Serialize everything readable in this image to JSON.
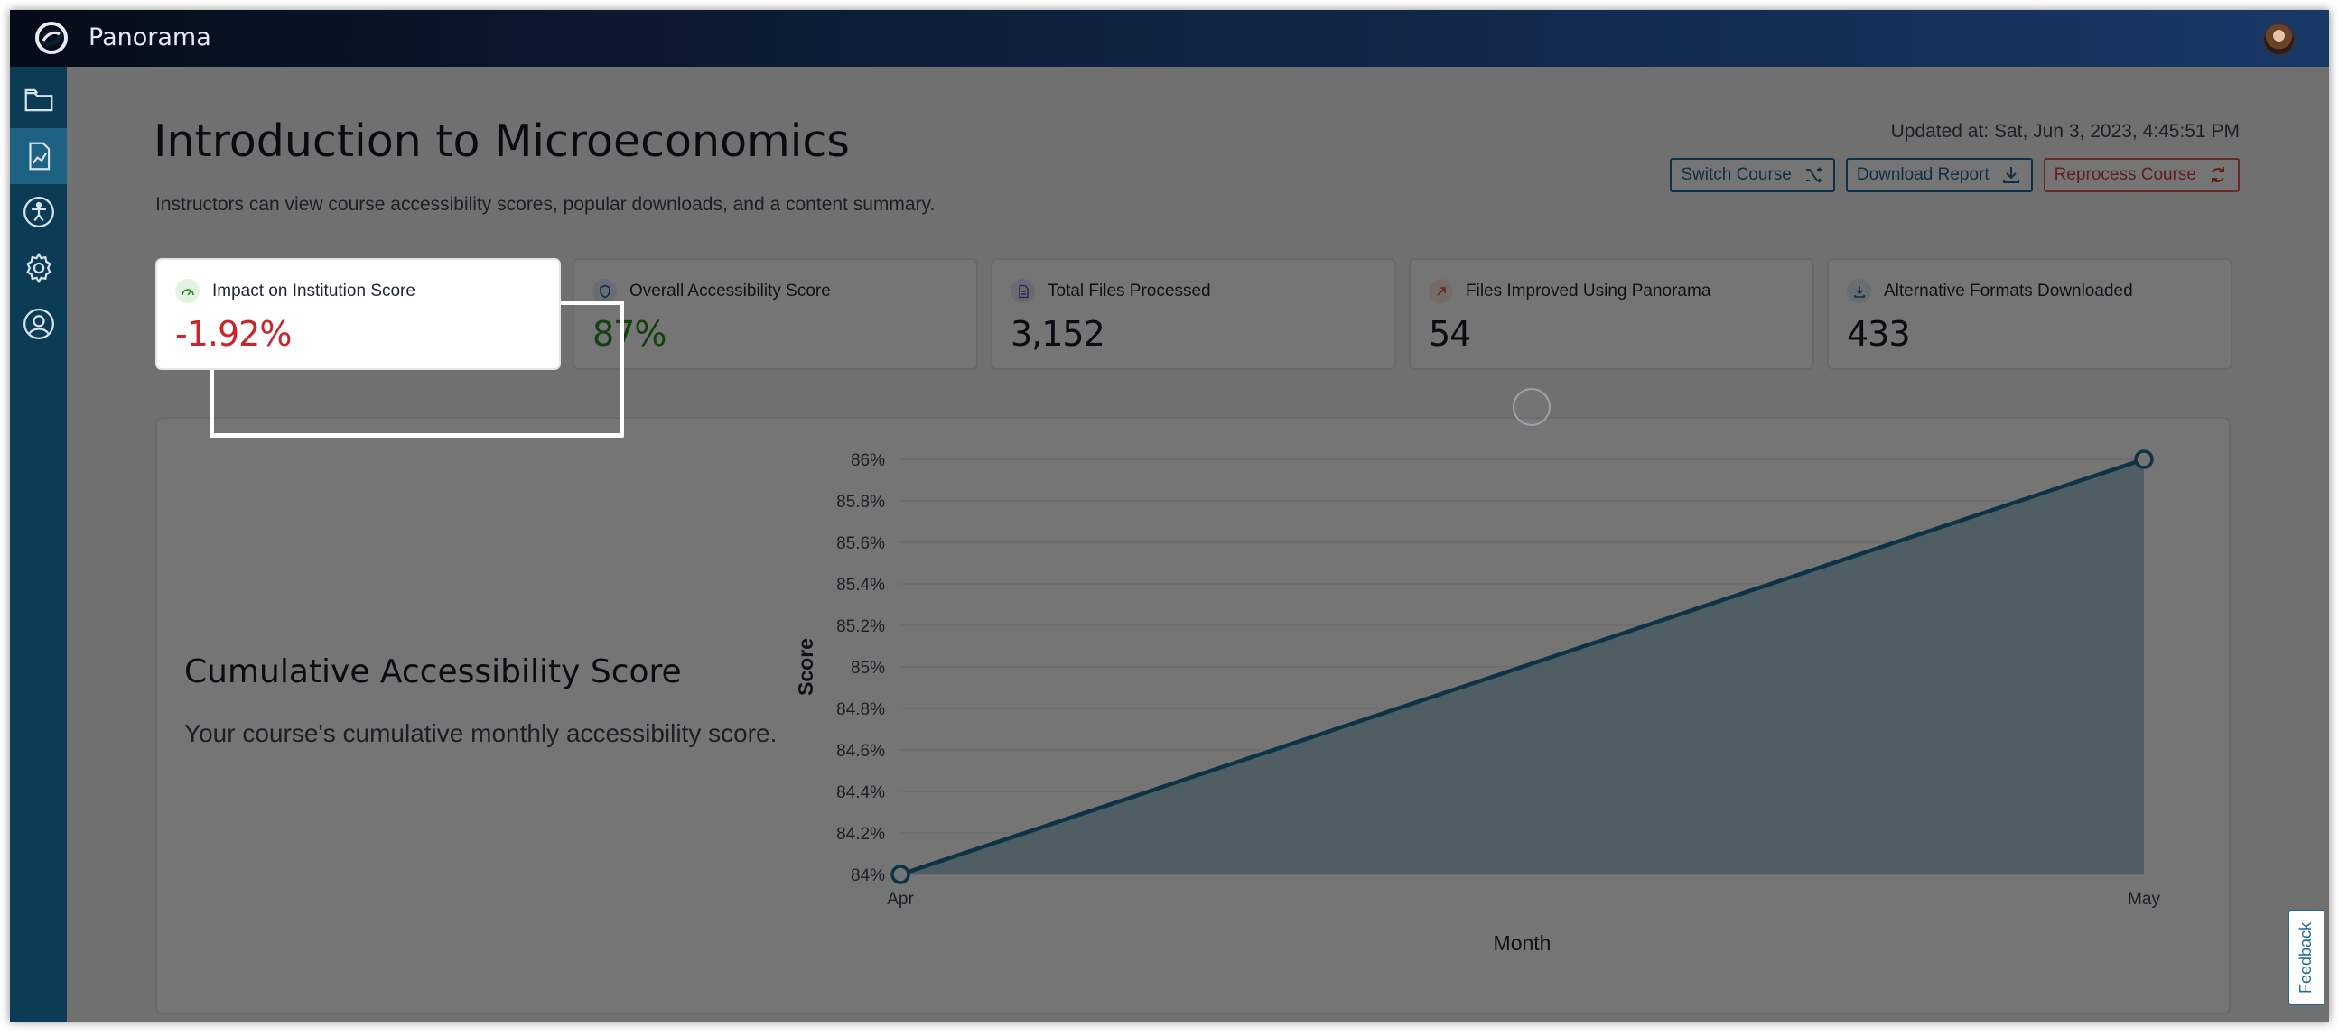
{
  "app": {
    "title": "Panorama"
  },
  "sidebar": {
    "items": [
      {
        "name": "folder",
        "icon": "folder-icon"
      },
      {
        "name": "reports",
        "icon": "report-chart-icon"
      },
      {
        "name": "accessibility",
        "icon": "accessibility-icon"
      },
      {
        "name": "settings",
        "icon": "gear-icon"
      },
      {
        "name": "account",
        "icon": "user-circle-icon"
      }
    ],
    "active": "reports"
  },
  "page": {
    "title": "Introduction to Microeconomics",
    "subtitle": "Instructors can view course accessibility scores, popular downloads, and a content summary.",
    "updated": "Updated at: Sat, Jun 3, 2023, 4:45:51 PM"
  },
  "actions": {
    "switch_course": "Switch Course",
    "download_report": "Download Report",
    "reprocess_course": "Reprocess Course"
  },
  "stats": [
    {
      "label": "Impact on Institution Score",
      "value": "-1.92%",
      "icon": "gauge-icon",
      "value_color": "#c6272b",
      "highlighted": true
    },
    {
      "label": "Overall Accessibility Score",
      "value": "87%",
      "icon": "shield-icon",
      "value_color": "#2e8a2a"
    },
    {
      "label": "Total Files Processed",
      "value": "3,152",
      "icon": "document-icon"
    },
    {
      "label": "Files Improved Using Panorama",
      "value": "54",
      "icon": "arrow-up-right-icon"
    },
    {
      "label": "Alternative Formats Downloaded",
      "value": "433",
      "icon": "download-icon"
    }
  ],
  "chart_section": {
    "title": "Cumulative Accessibility Score",
    "description": "Your course's cumulative monthly accessibility score."
  },
  "chart_data": {
    "type": "area",
    "x": [
      "Apr",
      "May"
    ],
    "series": [
      {
        "values": [
          84,
          86
        ]
      }
    ],
    "xlabel": "Month",
    "ylabel": "Score",
    "ylim": [
      84,
      86
    ],
    "yticks": [
      "84%",
      "84.2%",
      "84.4%",
      "84.6%",
      "84.8%",
      "85%",
      "85.2%",
      "85.4%",
      "85.6%",
      "85.8%",
      "86%"
    ],
    "grid": true,
    "line_color": "#1b6f98",
    "fill_color": "#9ec3d7"
  },
  "feedback": {
    "label": "Feedback"
  },
  "colors": {
    "primary": "#1e6a95",
    "danger": "#d64143",
    "sidebar": "#0c3c55"
  }
}
